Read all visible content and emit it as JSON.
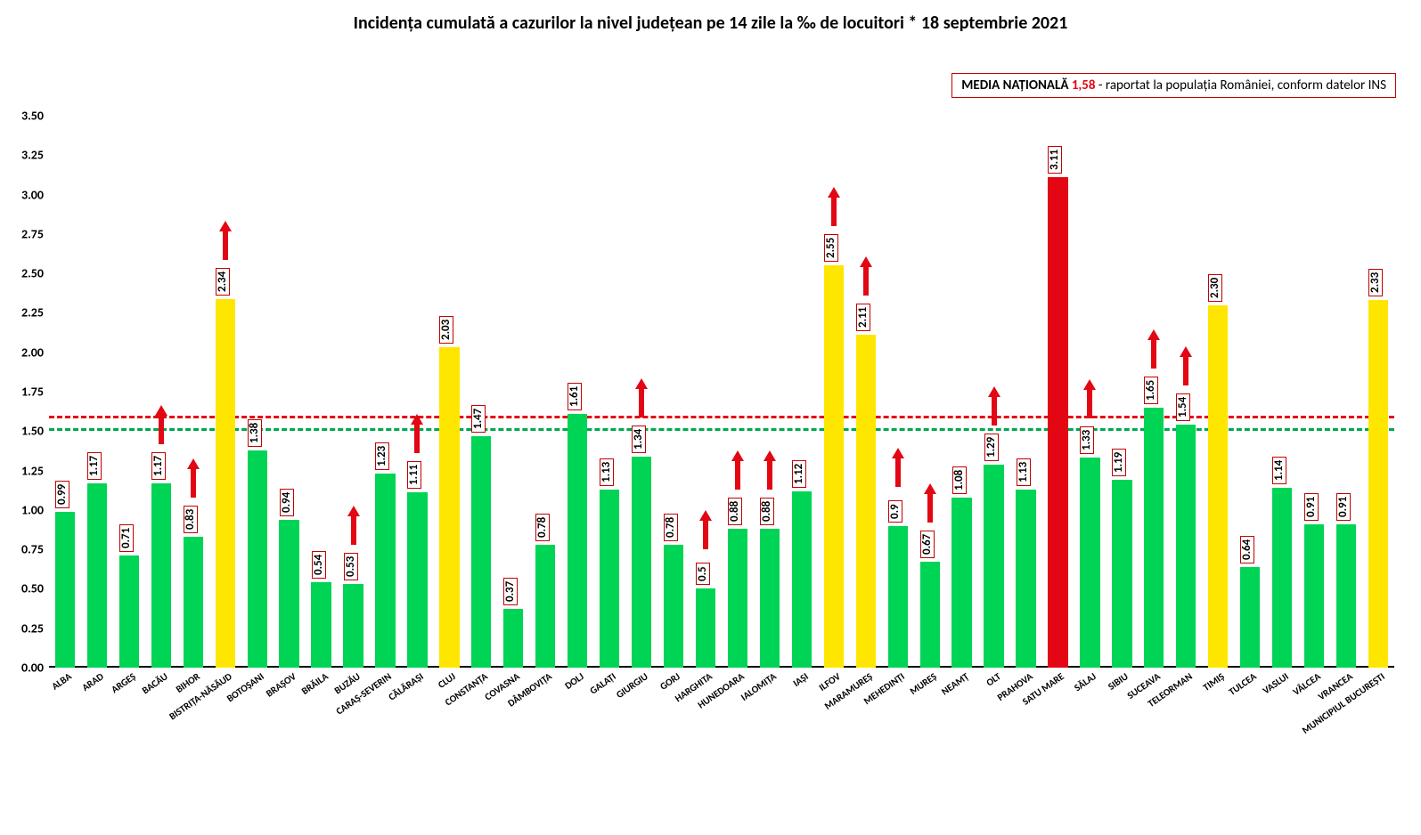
{
  "title": "Incidența cumulată a cazurilor la nivel județean pe 14 zile la ‰ de locuitori * 18 septembrie 2021",
  "title_fontsize": 20,
  "legend": {
    "label": "MEDIA NAȚIONALĂ",
    "value": "1,58",
    "rest": " - raportat la populația României, conform datelor INS"
  },
  "chart": {
    "type": "bar",
    "ylim": [
      0,
      3.5
    ],
    "ytick_step": 0.25,
    "yticks": [
      "0.00",
      "0.25",
      "0.50",
      "0.75",
      "1.00",
      "1.25",
      "1.50",
      "1.75",
      "2.00",
      "2.25",
      "2.50",
      "2.75",
      "3.00",
      "3.25",
      "3.50"
    ],
    "ytick_fontsize": 14,
    "reference_lines": [
      {
        "value": 1.5,
        "color": "#00a651",
        "style": "dashed"
      },
      {
        "value": 1.58,
        "color": "#e30613",
        "style": "dashed"
      }
    ],
    "bar_colors": {
      "green": "#00d455",
      "yellow": "#ffe600",
      "red": "#e30613"
    },
    "arrow_color": "#e30613",
    "value_label_fontsize": 13,
    "xlabel_fontsize": 11,
    "bar_width_ratio": 0.62,
    "background_color": "#ffffff",
    "data": [
      {
        "label": "ALBA",
        "value": 0.99,
        "color": "green",
        "arrow": false
      },
      {
        "label": "ARAD",
        "value": 1.17,
        "color": "green",
        "arrow": false
      },
      {
        "label": "ARGEȘ",
        "value": 0.71,
        "color": "green",
        "arrow": false
      },
      {
        "label": "BACĂU",
        "value": 1.17,
        "color": "green",
        "arrow": true
      },
      {
        "label": "BIHOR",
        "value": 0.83,
        "color": "green",
        "arrow": true
      },
      {
        "label": "BISTRIȚA-NĂSĂUD",
        "value": 2.34,
        "color": "yellow",
        "arrow": true
      },
      {
        "label": "BOTOȘANI",
        "value": 1.38,
        "color": "green",
        "arrow": false
      },
      {
        "label": "BRAȘOV",
        "value": 0.94,
        "color": "green",
        "arrow": false
      },
      {
        "label": "BRĂILA",
        "value": 0.54,
        "color": "green",
        "arrow": false
      },
      {
        "label": "BUZĂU",
        "value": 0.53,
        "color": "green",
        "arrow": true
      },
      {
        "label": "CARAȘ-SEVERIN",
        "value": 1.23,
        "color": "green",
        "arrow": false
      },
      {
        "label": "CĂLĂRAȘI",
        "value": 1.11,
        "color": "green",
        "arrow": true
      },
      {
        "label": "CLUJ",
        "value": 2.03,
        "color": "yellow",
        "arrow": false
      },
      {
        "label": "CONSTANȚA",
        "value": 1.47,
        "color": "green",
        "arrow": false
      },
      {
        "label": "COVASNA",
        "value": 0.37,
        "color": "green",
        "arrow": false
      },
      {
        "label": "DÂMBOVIȚA",
        "value": 0.78,
        "color": "green",
        "arrow": false
      },
      {
        "label": "DOLJ",
        "value": 1.61,
        "color": "green",
        "arrow": false
      },
      {
        "label": "GALAȚI",
        "value": 1.13,
        "color": "green",
        "arrow": false
      },
      {
        "label": "GIURGIU",
        "value": 1.34,
        "color": "green",
        "arrow": true
      },
      {
        "label": "GORJ",
        "value": 0.78,
        "color": "green",
        "arrow": false
      },
      {
        "label": "HARGHITA",
        "value": 0.5,
        "color": "green",
        "arrow": true,
        "display": "0.5"
      },
      {
        "label": "HUNEDOARA",
        "value": 0.88,
        "color": "green",
        "arrow": true
      },
      {
        "label": "IALOMIȚA",
        "value": 0.88,
        "color": "green",
        "arrow": true
      },
      {
        "label": "IAȘI",
        "value": 1.12,
        "color": "green",
        "arrow": false
      },
      {
        "label": "ILFOV",
        "value": 2.55,
        "color": "yellow",
        "arrow": true
      },
      {
        "label": "MARAMUREȘ",
        "value": 2.11,
        "color": "yellow",
        "arrow": true
      },
      {
        "label": "MEHEDINȚI",
        "value": 0.9,
        "color": "green",
        "arrow": true,
        "display": "0.9"
      },
      {
        "label": "MUREȘ",
        "value": 0.67,
        "color": "green",
        "arrow": true
      },
      {
        "label": "NEAMȚ",
        "value": 1.08,
        "color": "green",
        "arrow": false
      },
      {
        "label": "OLT",
        "value": 1.29,
        "color": "green",
        "arrow": true
      },
      {
        "label": "PRAHOVA",
        "value": 1.13,
        "color": "green",
        "arrow": false
      },
      {
        "label": "SATU MARE",
        "value": 3.11,
        "color": "red",
        "arrow": false
      },
      {
        "label": "SĂLAJ",
        "value": 1.33,
        "color": "green",
        "arrow": true
      },
      {
        "label": "SIBIU",
        "value": 1.19,
        "color": "green",
        "arrow": false
      },
      {
        "label": "SUCEAVA",
        "value": 1.65,
        "color": "green",
        "arrow": true
      },
      {
        "label": "TELEORMAN",
        "value": 1.54,
        "color": "green",
        "arrow": true
      },
      {
        "label": "TIMIȘ",
        "value": 2.3,
        "color": "yellow",
        "arrow": false
      },
      {
        "label": "TULCEA",
        "value": 0.64,
        "color": "green",
        "arrow": false
      },
      {
        "label": "VASLUI",
        "value": 1.14,
        "color": "green",
        "arrow": false
      },
      {
        "label": "VÂLCEA",
        "value": 0.91,
        "color": "green",
        "arrow": false
      },
      {
        "label": "VRANCEA",
        "value": 0.91,
        "color": "green",
        "arrow": false
      },
      {
        "label": "MUNICIPIUL BUCUREȘTI",
        "value": 2.33,
        "color": "yellow",
        "arrow": false
      }
    ]
  }
}
